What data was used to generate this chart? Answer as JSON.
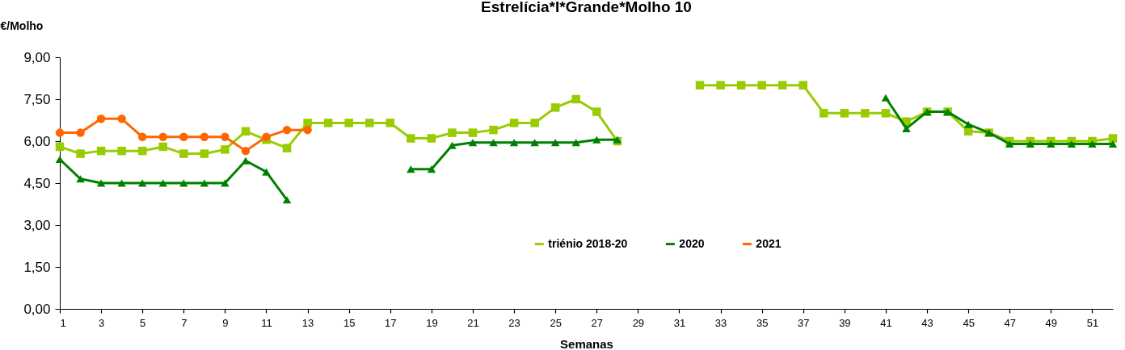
{
  "chart_data": {
    "type": "line",
    "title": "Estrelícia*I*Grande*Molho 10",
    "xlabel": "Semanas",
    "ylabel": "€/Molho",
    "x": [
      1,
      2,
      3,
      4,
      5,
      6,
      7,
      8,
      9,
      10,
      11,
      12,
      13,
      14,
      15,
      16,
      17,
      18,
      19,
      20,
      21,
      22,
      23,
      24,
      25,
      26,
      27,
      28,
      29,
      30,
      31,
      32,
      33,
      34,
      35,
      36,
      37,
      38,
      39,
      40,
      41,
      42,
      43,
      44,
      45,
      46,
      47,
      48,
      49,
      50,
      51,
      52
    ],
    "series": [
      {
        "name": "triénio 2018-20",
        "color": "#99cc00",
        "marker": "square",
        "values": [
          5.8,
          5.55,
          5.65,
          5.65,
          5.65,
          5.8,
          5.55,
          5.55,
          5.7,
          6.35,
          6.05,
          5.75,
          6.65,
          6.65,
          6.65,
          6.65,
          6.65,
          6.1,
          6.1,
          6.3,
          6.3,
          6.4,
          6.65,
          6.65,
          7.2,
          7.5,
          7.05,
          6.0,
          null,
          null,
          null,
          8.0,
          8.0,
          8.0,
          8.0,
          8.0,
          8.0,
          7.0,
          7.0,
          7.0,
          7.0,
          6.7,
          7.05,
          7.05,
          6.35,
          6.3,
          6.0,
          6.0,
          6.0,
          6.0,
          6.0,
          6.1
        ]
      },
      {
        "name": "2020",
        "color": "#008000",
        "marker": "triangle",
        "values": [
          5.35,
          4.65,
          4.5,
          4.5,
          4.5,
          4.5,
          4.5,
          4.5,
          4.5,
          5.3,
          4.9,
          3.9,
          null,
          null,
          null,
          null,
          null,
          5.0,
          5.0,
          5.85,
          5.95,
          5.95,
          5.95,
          5.95,
          5.95,
          5.95,
          6.05,
          6.05,
          null,
          null,
          null,
          null,
          null,
          null,
          null,
          null,
          null,
          null,
          null,
          null,
          7.55,
          6.45,
          7.05,
          7.05,
          6.6,
          6.3,
          5.9,
          5.9,
          5.9,
          5.9,
          5.9,
          5.9
        ]
      },
      {
        "name": "2021",
        "color": "#ff6600",
        "marker": "circle",
        "values": [
          6.3,
          6.3,
          6.8,
          6.8,
          6.15,
          6.15,
          6.15,
          6.15,
          6.15,
          5.65,
          6.15,
          6.4,
          6.4,
          null,
          null,
          null,
          null,
          null,
          null,
          null,
          null,
          null,
          null,
          null,
          null,
          null,
          null,
          null,
          null,
          null,
          null,
          null,
          null,
          null,
          null,
          null,
          null,
          null,
          null,
          null,
          null,
          null,
          null,
          null,
          null,
          null,
          null,
          null,
          null,
          null,
          null,
          null
        ]
      }
    ],
    "xlim": [
      1,
      52
    ],
    "xticks": [
      1,
      3,
      5,
      7,
      9,
      11,
      13,
      15,
      17,
      19,
      21,
      23,
      25,
      27,
      29,
      31,
      33,
      35,
      37,
      39,
      41,
      43,
      45,
      47,
      49,
      51
    ],
    "ylim": [
      0,
      9
    ],
    "yticks": [
      {
        "value": 0,
        "label": "0,00"
      },
      {
        "value": 1.5,
        "label": "1,50"
      },
      {
        "value": 3,
        "label": "3,00"
      },
      {
        "value": 4.5,
        "label": "4,50"
      },
      {
        "value": 6,
        "label": "6,00"
      },
      {
        "value": 7.5,
        "label": "7,50"
      },
      {
        "value": 9,
        "label": "9,00"
      }
    ],
    "grid": false,
    "legend": "bottom"
  }
}
